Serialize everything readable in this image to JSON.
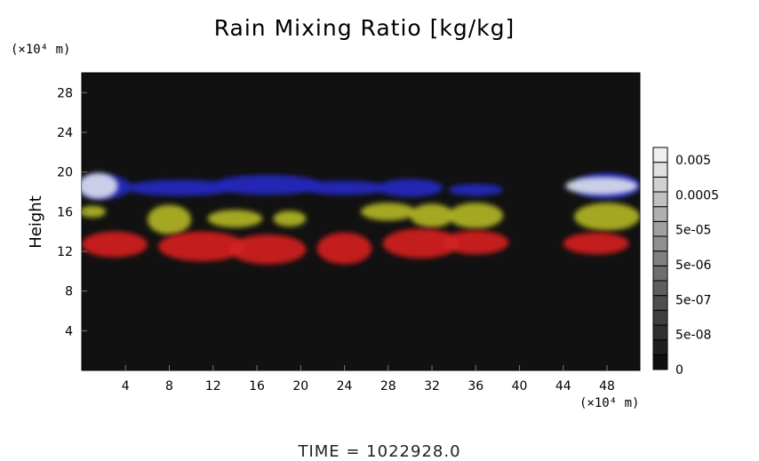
{
  "chart_data": {
    "type": "heatmap",
    "title": "Rain Mixing Ratio [kg/kg]",
    "xlabel": "",
    "ylabel": "Height",
    "x_unit": "(×10⁴ m)",
    "y_unit": "(×10⁴ m)",
    "xlim": [
      0,
      51
    ],
    "ylim": [
      0,
      30
    ],
    "x_ticks": [
      4,
      8,
      12,
      16,
      20,
      24,
      28,
      32,
      36,
      40,
      44,
      48
    ],
    "y_ticks": [
      4,
      8,
      12,
      16,
      20,
      24,
      28
    ],
    "background": "#111111",
    "footer": "TIME  =  1022928.0",
    "colorbar": {
      "labels": [
        "0.005",
        "0.0005",
        "5e-05",
        "5e-06",
        "5e-07",
        "5e-08",
        "0"
      ],
      "levels": 15
    },
    "layers": [
      {
        "level": "blue",
        "color": "#2228c0",
        "height_range": [
          17,
          20
        ],
        "blobs": [
          {
            "x": 9,
            "y": 18.4,
            "rx": 5,
            "ry": 0.8
          },
          {
            "x": 17,
            "y": 18.7,
            "rx": 5,
            "ry": 1.0
          },
          {
            "x": 24,
            "y": 18.4,
            "rx": 4,
            "ry": 0.7
          },
          {
            "x": 30,
            "y": 18.4,
            "rx": 3,
            "ry": 0.9
          },
          {
            "x": 36,
            "y": 18.2,
            "rx": 2.5,
            "ry": 0.6
          },
          {
            "x": 2,
            "y": 18.5,
            "rx": 2.5,
            "ry": 1.2
          },
          {
            "x": 48,
            "y": 18.6,
            "rx": 3,
            "ry": 1.3
          }
        ]
      },
      {
        "level": "white",
        "color": "#d8dcec",
        "height_range": [
          16,
          20
        ],
        "blobs": [
          {
            "x": 1.5,
            "y": 18.6,
            "rx": 1.8,
            "ry": 1.3
          },
          {
            "x": 47.5,
            "y": 18.6,
            "rx": 3.3,
            "ry": 0.9
          }
        ]
      },
      {
        "level": "yellow",
        "color": "#b0b422",
        "height_range": [
          13,
          17
        ],
        "blobs": [
          {
            "x": 1,
            "y": 16.0,
            "rx": 1.2,
            "ry": 0.6
          },
          {
            "x": 8,
            "y": 15.2,
            "rx": 2.0,
            "ry": 1.5
          },
          {
            "x": 14,
            "y": 15.3,
            "rx": 2.5,
            "ry": 0.9
          },
          {
            "x": 19,
            "y": 15.3,
            "rx": 1.5,
            "ry": 0.8
          },
          {
            "x": 28,
            "y": 16.0,
            "rx": 2.5,
            "ry": 0.9
          },
          {
            "x": 32,
            "y": 15.6,
            "rx": 2.0,
            "ry": 1.2
          },
          {
            "x": 36,
            "y": 15.6,
            "rx": 2.5,
            "ry": 1.3
          },
          {
            "x": 48,
            "y": 15.5,
            "rx": 3.0,
            "ry": 1.4
          }
        ]
      },
      {
        "level": "red",
        "color": "#d42020",
        "height_range": [
          10.5,
          14.5
        ],
        "blobs": [
          {
            "x": 3,
            "y": 12.7,
            "rx": 3.0,
            "ry": 1.3
          },
          {
            "x": 11,
            "y": 12.5,
            "rx": 4.0,
            "ry": 1.5
          },
          {
            "x": 17,
            "y": 12.2,
            "rx": 3.5,
            "ry": 1.5
          },
          {
            "x": 24,
            "y": 12.3,
            "rx": 2.5,
            "ry": 1.6
          },
          {
            "x": 31,
            "y": 12.8,
            "rx": 3.5,
            "ry": 1.5
          },
          {
            "x": 36,
            "y": 12.9,
            "rx": 3.0,
            "ry": 1.2
          },
          {
            "x": 47,
            "y": 12.8,
            "rx": 3.0,
            "ry": 1.1
          }
        ]
      }
    ]
  }
}
